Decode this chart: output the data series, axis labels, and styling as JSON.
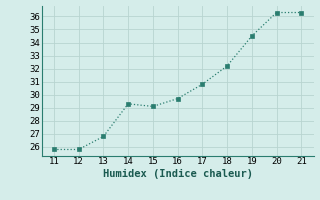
{
  "x": [
    11,
    12,
    13,
    14,
    15,
    16,
    17,
    18,
    19,
    20,
    21
  ],
  "y": [
    25.8,
    25.8,
    26.8,
    29.3,
    29.1,
    29.7,
    30.8,
    32.2,
    34.5,
    36.3,
    36.3
  ],
  "line_color": "#2a7d6f",
  "marker_color": "#2a7d6f",
  "bg_color": "#d5edea",
  "grid_major_color": "#b8d4d0",
  "grid_minor_color": "#c8e0dc",
  "xlabel": "Humidex (Indice chaleur)",
  "xlim": [
    10.5,
    21.5
  ],
  "ylim": [
    25.3,
    36.8
  ],
  "xticks": [
    11,
    12,
    13,
    14,
    15,
    16,
    17,
    18,
    19,
    20,
    21
  ],
  "yticks": [
    26,
    27,
    28,
    29,
    30,
    31,
    32,
    33,
    34,
    35,
    36
  ],
  "xlabel_fontsize": 7.5,
  "tick_fontsize": 6.5
}
